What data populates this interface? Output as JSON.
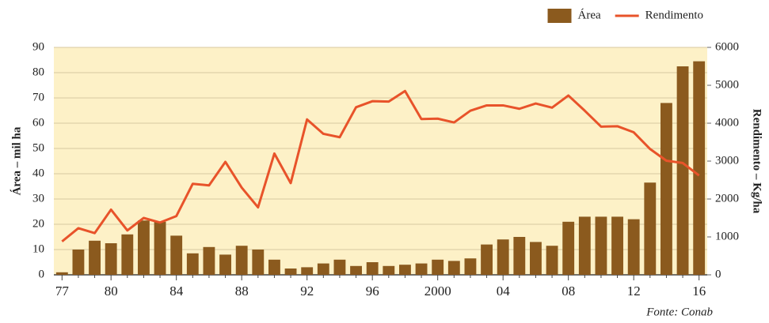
{
  "chart_data": {
    "type": "bar-line",
    "categories": [
      "77",
      null,
      null,
      "80",
      null,
      null,
      null,
      "84",
      null,
      null,
      null,
      "88",
      null,
      null,
      null,
      "92",
      null,
      null,
      null,
      "96",
      null,
      null,
      null,
      "2000",
      null,
      null,
      null,
      "04",
      null,
      null,
      null,
      "08",
      null,
      null,
      null,
      "12",
      null,
      null,
      null,
      "16"
    ],
    "series": [
      {
        "name": "Área",
        "color": "#8b5a1e",
        "type": "bar",
        "axis": "y",
        "values": [
          1,
          10,
          13.5,
          12.5,
          16,
          21.5,
          21,
          15.5,
          8.5,
          11,
          8,
          11.5,
          10,
          6,
          2.5,
          3,
          4.5,
          6,
          3.5,
          5,
          3.5,
          4,
          4.5,
          6,
          5.5,
          6.5,
          12,
          14,
          15,
          13,
          11.5,
          21,
          23,
          23,
          23,
          22,
          36.5,
          68,
          82.5,
          84.5
        ]
      },
      {
        "name": "Rendimento",
        "color": "#e8532a",
        "type": "line",
        "axis": "y2",
        "values": [
          880,
          1230,
          1100,
          1720,
          1170,
          1500,
          1380,
          1550,
          2400,
          2360,
          2980,
          2300,
          1780,
          3200,
          2420,
          4100,
          3720,
          3630,
          4420,
          4580,
          4570,
          4850,
          4110,
          4120,
          4020,
          4330,
          4470,
          4470,
          4380,
          4520,
          4410,
          4730,
          4330,
          3910,
          3920,
          3760,
          3320,
          3010,
          2950,
          2620
        ]
      }
    ],
    "ylabel": "Área – mil ha",
    "y2label": "Rendimento – Kg/ha",
    "ylim": [
      0,
      90
    ],
    "yticks": [
      0,
      10,
      20,
      30,
      40,
      50,
      60,
      70,
      80,
      90
    ],
    "y2lim": [
      0,
      6000
    ],
    "y2ticks": [
      0,
      1000,
      2000,
      3000,
      4000,
      5000,
      6000
    ],
    "grid": true,
    "legend": "top-right",
    "source": "Fonte: Conab"
  }
}
